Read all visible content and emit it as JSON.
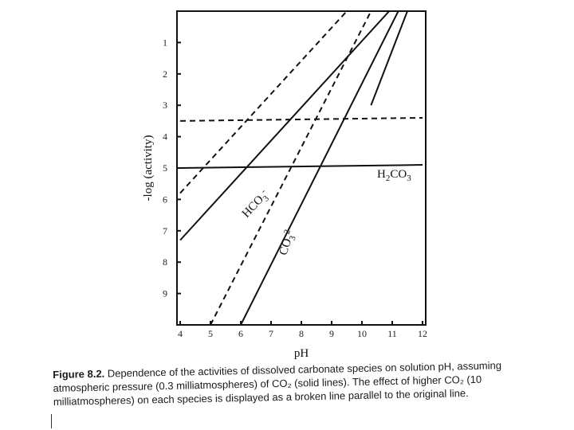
{
  "chart_data": {
    "type": "line",
    "xlabel": "pH",
    "ylabel": "-log (activity)",
    "xlim": [
      4,
      12
    ],
    "ylim": [
      0,
      10
    ],
    "y_inverted": true,
    "x_ticks": [
      "4",
      "5",
      "6",
      "7",
      "8",
      "9",
      "10",
      "11",
      "12"
    ],
    "y_ticks": [
      "1",
      "2",
      "3",
      "4",
      "5",
      "6",
      "7",
      "8",
      "9"
    ],
    "series": [
      {
        "name": "H2CO3",
        "style": "solid",
        "x": [
          4,
          12
        ],
        "y": [
          5.0,
          4.9
        ]
      },
      {
        "name": "",
        "style": "dashed",
        "x": [
          4,
          12
        ],
        "y": [
          3.5,
          3.4
        ]
      },
      {
        "name": "HCO3-",
        "style": "solid",
        "x": [
          4,
          10.9
        ],
        "y": [
          7.3,
          0.0
        ]
      },
      {
        "name": "",
        "style": "dashed",
        "x": [
          4,
          9.5
        ],
        "y": [
          5.8,
          0.0
        ]
      },
      {
        "name": "CO3 2-",
        "style": "solid",
        "x": [
          6.0,
          11.2
        ],
        "y": [
          10.0,
          0.0
        ]
      },
      {
        "name": "",
        "style": "dashed",
        "x": [
          5.0,
          10.3
        ],
        "y": [
          10.0,
          0.0
        ]
      },
      {
        "name": "",
        "style": "solid",
        "x": [
          10.3,
          11.5
        ],
        "y": [
          3.0,
          0.0
        ]
      }
    ],
    "annotations": [
      {
        "text": "H2CO3",
        "x": 10.5,
        "y": 5.3
      },
      {
        "text": "HCO3-",
        "x": 6.2,
        "y": 6.6
      },
      {
        "text": "CO32-",
        "x": 7.5,
        "y": 7.8
      }
    ]
  },
  "caption": {
    "figure_number": "Figure 8.2.",
    "text": "Dependence of the activities of dissolved carbonate species on solution pH, assuming atmospheric pressure (0.3 milliatmospheres) of CO₂ (solid lines). The effect of higher CO₂ (10 milliatmospheres) on each species is displayed as a broken line parallel to the original line."
  }
}
